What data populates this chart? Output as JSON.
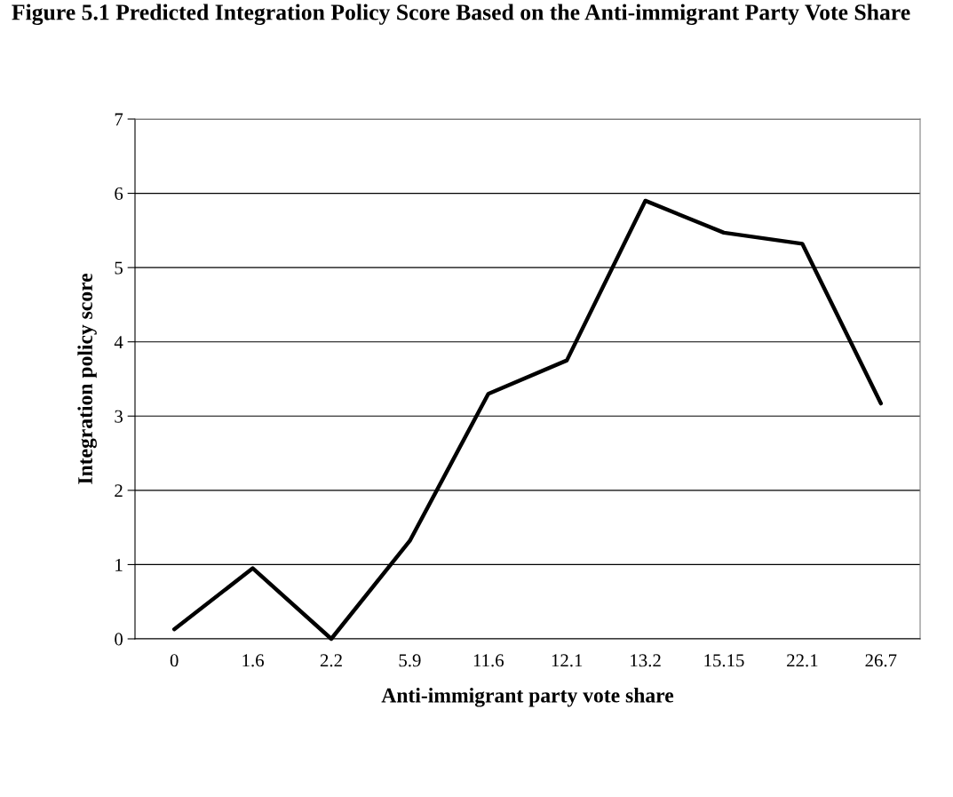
{
  "chart_data": {
    "type": "line",
    "title": "Figure 5.1 Predicted Integration Policy Score Based on the Anti-immigrant Party Vote Share",
    "xlabel": "Anti-immigrant party vote share",
    "ylabel": "Integration policy score",
    "categories": [
      "0",
      "1.6",
      "2.2",
      "5.9",
      "11.6",
      "12.1",
      "13.2",
      "15.15",
      "22.1",
      "26.7"
    ],
    "series": [
      {
        "color": "#000000",
        "values": [
          0.13,
          0.95,
          0.0,
          1.32,
          3.3,
          3.75,
          5.9,
          5.47,
          5.32,
          3.17
        ]
      }
    ],
    "ylim": [
      0,
      7
    ],
    "yticks": [
      0,
      1,
      2,
      3,
      4,
      5,
      6,
      7
    ],
    "grid": "y",
    "marker": "none",
    "line_style": "solid"
  }
}
